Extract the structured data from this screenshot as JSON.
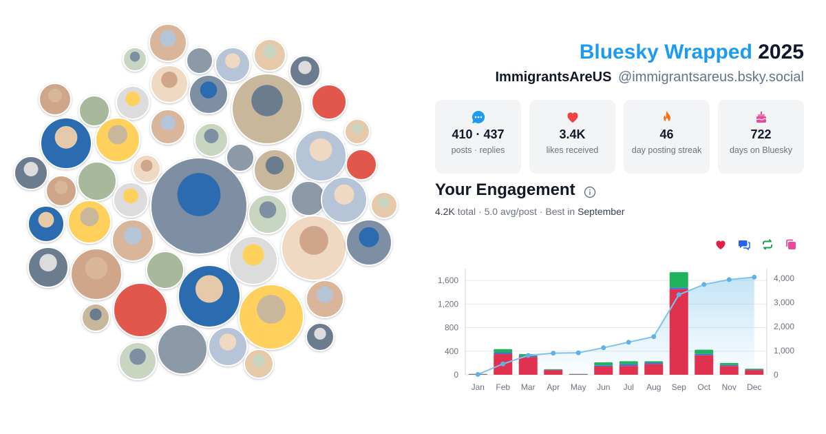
{
  "header": {
    "brand": "Bluesky Wrapped",
    "year": "2025",
    "display_name": "ImmigrantsAreUS",
    "handle": "@immigrantsareus.bsky.social"
  },
  "stats": [
    {
      "icon": "chat-bubble-icon",
      "color": "#1d9bf0",
      "value": "410 · 437",
      "label": "posts · replies"
    },
    {
      "icon": "heart-icon",
      "color": "#ef4444",
      "value": "3.4K",
      "label": "likes received"
    },
    {
      "icon": "flame-icon",
      "color": "#f97316",
      "value": "46",
      "label": "day posting streak"
    },
    {
      "icon": "cake-icon",
      "color": "#ec4899",
      "value": "722",
      "label": "days on Bluesky"
    }
  ],
  "engagement": {
    "title": "Your Engagement",
    "total": "4.2K",
    "total_label": "total",
    "avg": "5.0 avg/post",
    "best_label": "Best in",
    "best_month": "September"
  },
  "legend": [
    {
      "icon": "heart-icon",
      "color": "#e11d48"
    },
    {
      "icon": "replies-icon",
      "color": "#2563eb"
    },
    {
      "icon": "repost-icon",
      "color": "#16a34a"
    },
    {
      "icon": "quote-icon",
      "color": "#ec4899"
    }
  ],
  "colors": {
    "likes": "#e0324f",
    "replies": "#4f6fd0",
    "reposts": "#22b25e",
    "cumulative": "#7cc4ec"
  },
  "chart_data": {
    "type": "bar",
    "categories": [
      "Jan",
      "Feb",
      "Mar",
      "Apr",
      "May",
      "Jun",
      "Jul",
      "Aug",
      "Sep",
      "Oct",
      "Nov",
      "Dec"
    ],
    "series": [
      {
        "values": [
          10,
          350,
          300,
          80,
          10,
          140,
          150,
          180,
          1450,
          330,
          150,
          80
        ]
      },
      {
        "values": [
          2,
          30,
          20,
          5,
          2,
          20,
          30,
          25,
          30,
          25,
          15,
          8
        ]
      },
      {
        "values": [
          3,
          55,
          30,
          10,
          3,
          50,
          50,
          25,
          260,
          70,
          35,
          15
        ]
      }
    ],
    "cumulative": [
      15,
      450,
      800,
      895,
      910,
      1120,
      1350,
      1580,
      3320,
      3745,
      3945,
      4048
    ],
    "ylim_left": [
      0,
      1800
    ],
    "ylim_right": [
      0,
      4400
    ],
    "yticks_left": [
      "0",
      "400",
      "800",
      "1,200",
      "1,600"
    ],
    "yticks_right": [
      "0",
      "1,000",
      "2,000",
      "3,000",
      "4,000"
    ]
  },
  "bubbles": [
    {
      "name": "avatar-bubble",
      "color": "#d9b59a"
    },
    {
      "name": "avatar-bubble",
      "color": "#c8d6c1"
    },
    {
      "name": "avatar-bubble",
      "color": "#8c9aa8"
    }
  ]
}
